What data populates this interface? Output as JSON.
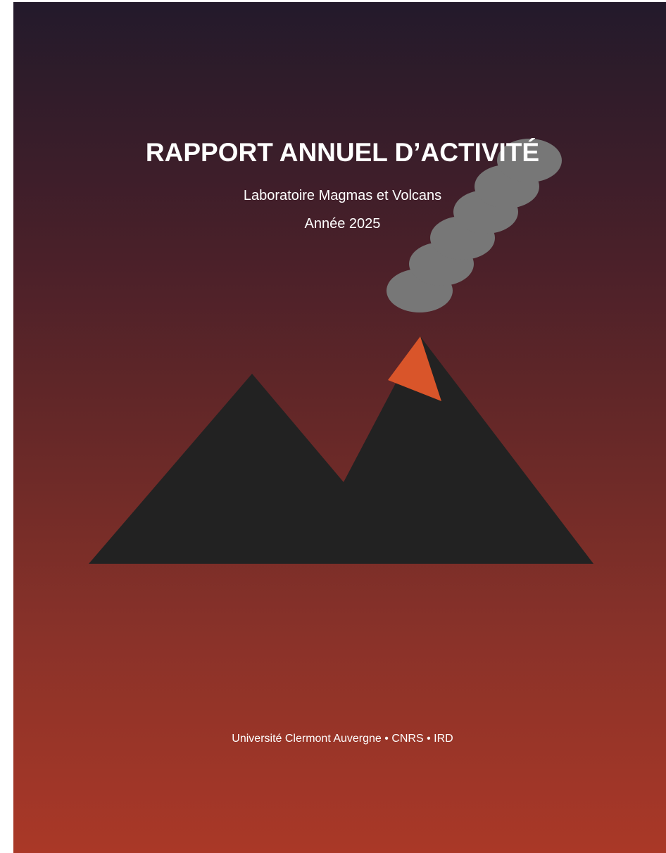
{
  "cover": {
    "title": "RAPPORT ANNUEL D’ACTIVITÉ",
    "subtitle": "Laboratoire Magmas et Volcans",
    "year": "Année 2025",
    "footer": "Université Clermont Auvergne • CNRS • IRD"
  }
}
